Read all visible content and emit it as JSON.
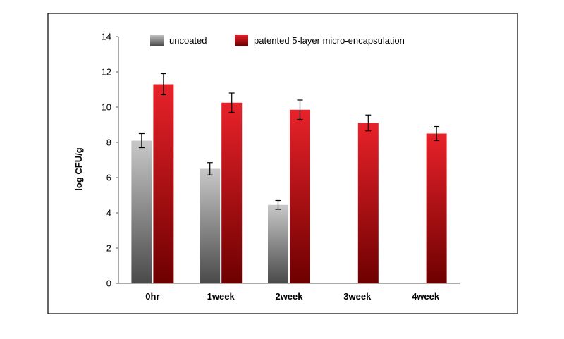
{
  "chart_data": {
    "type": "bar",
    "categories": [
      "0hr",
      "1week",
      "2week",
      "3week",
      "4week"
    ],
    "series": [
      {
        "name": "uncoated",
        "values": [
          8.1,
          6.5,
          4.45,
          null,
          null
        ],
        "errors": [
          0.4,
          0.35,
          0.25,
          null,
          null
        ],
        "color_top": "#c8c8c8",
        "color_bottom": "#4a4a4a"
      },
      {
        "name": "patented 5-layer micro-encapsulation",
        "values": [
          11.3,
          10.25,
          9.85,
          9.1,
          8.5
        ],
        "errors": [
          0.6,
          0.55,
          0.55,
          0.45,
          0.4
        ],
        "color_top": "#e8222a",
        "color_bottom": "#6e0000"
      }
    ],
    "ylabel": "log CFU/g",
    "ylim": [
      0,
      14
    ],
    "yticks": [
      0,
      2,
      4,
      6,
      8,
      10,
      12,
      14
    ],
    "legend_position": "top",
    "grid": false
  }
}
